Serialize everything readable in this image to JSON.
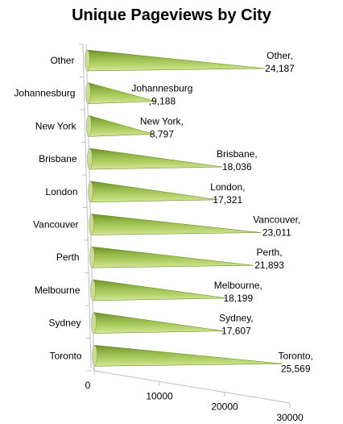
{
  "chart_data": {
    "type": "bar",
    "orientation": "horizontal",
    "style": "3d-cone",
    "title": "Unique Pageviews by City",
    "categories": [
      "Other",
      "Johannesburg",
      "New York",
      "Brisbane",
      "London",
      "Vancouver",
      "Perth",
      "Melbourne",
      "Sydney",
      "Toronto"
    ],
    "values": [
      24187,
      9188,
      8797,
      18036,
      17321,
      23011,
      21893,
      18199,
      17607,
      25569
    ],
    "data_labels": [
      [
        "Other,",
        "24,187"
      ],
      [
        "Johannesburg",
        ",9,188"
      ],
      [
        "New York,",
        "8,797"
      ],
      [
        "Brisbane,",
        "18,036"
      ],
      [
        "London,",
        "17,321"
      ],
      [
        "Vancouver,",
        "23,011"
      ],
      [
        "Perth,",
        "21,893"
      ],
      [
        "Melbourne,",
        "18,199"
      ],
      [
        "Sydney,",
        "17,607"
      ],
      [
        "Toronto,",
        "25,569"
      ]
    ],
    "x_ticks": [
      "0",
      "10000",
      "20000",
      "30000"
    ],
    "xlim": [
      0,
      30000
    ],
    "xlabel": "",
    "ylabel": "",
    "legend": "none",
    "colors": {
      "bar_light": "#b5d36a",
      "bar_dark": "#6f8f2a",
      "bar_mid": "#94b84a",
      "axis": "#bfbfbf"
    }
  }
}
